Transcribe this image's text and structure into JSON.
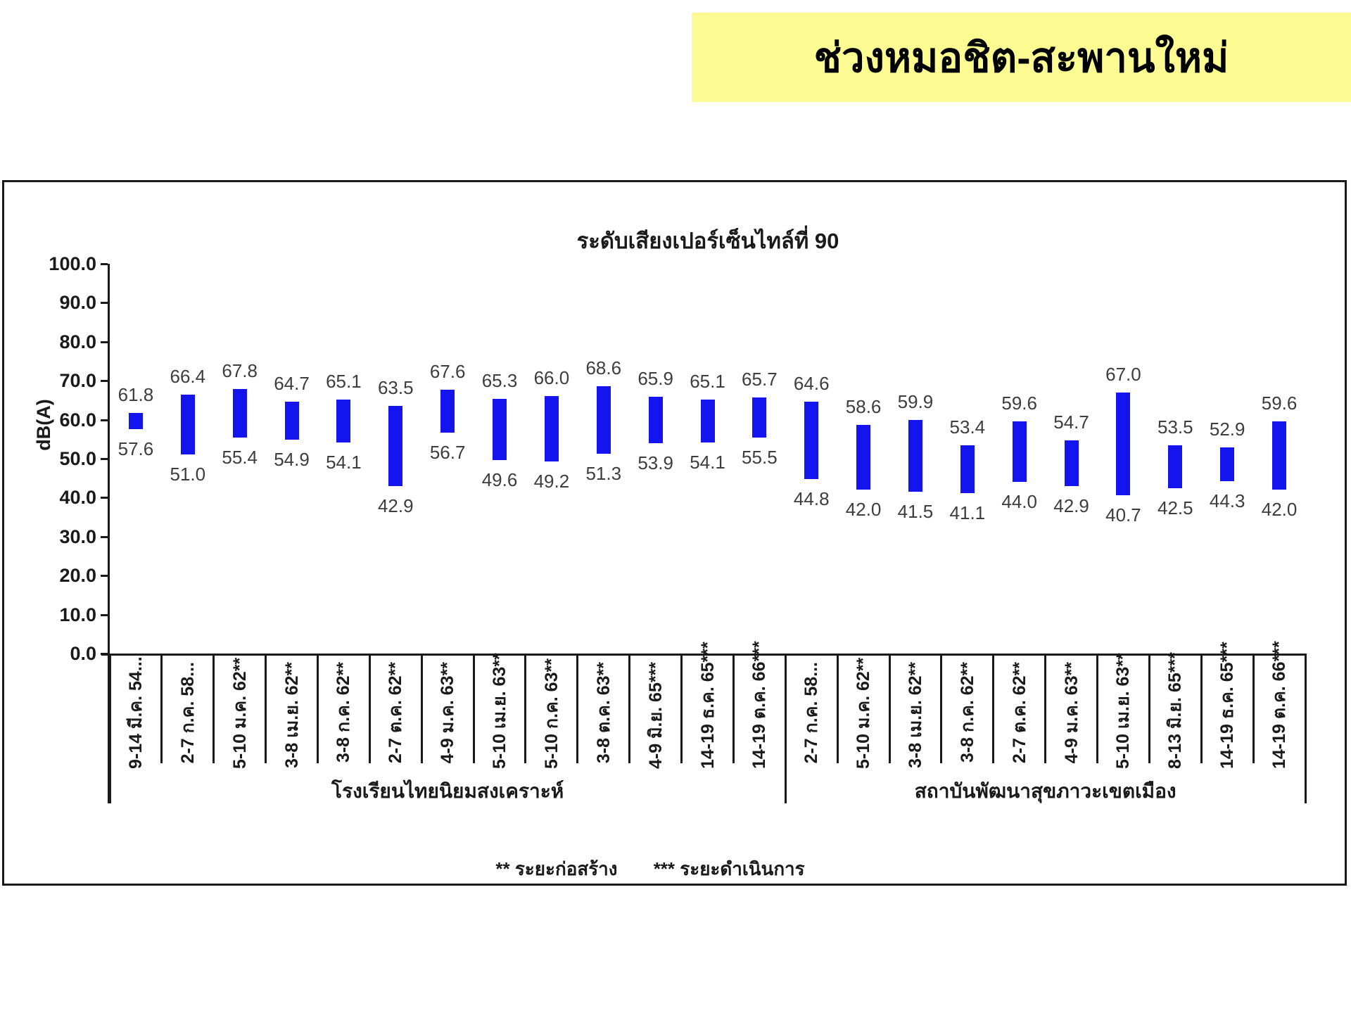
{
  "banner": {
    "title": "ช่วงหมอชิต-สะพานใหม่",
    "background_color": "#FBFB91"
  },
  "chart_data": {
    "type": "bar",
    "subtype": "floating-range-bars",
    "title": "ระดับเสียงเปอร์เซ็นไทล์ที่ 90",
    "ylabel": "dB(A)",
    "ylim": [
      0,
      100
    ],
    "ytick_values": [
      0,
      10,
      20,
      30,
      40,
      50,
      60,
      70,
      80,
      90,
      100
    ],
    "ytick_labels": [
      "0.0",
      "10.0",
      "20.0",
      "30.0",
      "40.0",
      "50.0",
      "60.0",
      "70.0",
      "80.0",
      "90.0",
      "100.0"
    ],
    "grid": false,
    "bar_color": "#1414EE",
    "value_label_color": "#3d3d3d",
    "groups": [
      {
        "label": "โรงเรียนไทยนิยมสงเคราะห์",
        "bars": [
          {
            "category": "9-14 มี.ค. 54...",
            "max": 61.8,
            "min": 57.6
          },
          {
            "category": "2-7 ก.ค. 58...",
            "max": 66.4,
            "min": 51.0
          },
          {
            "category": "5-10 ม.ค. 62**",
            "max": 67.8,
            "min": 55.4
          },
          {
            "category": "3-8 เม.ย. 62**",
            "max": 64.7,
            "min": 54.9
          },
          {
            "category": "3-8 ก.ค. 62**",
            "max": 65.1,
            "min": 54.1
          },
          {
            "category": "2-7 ต.ค. 62**",
            "max": 63.5,
            "min": 42.9
          },
          {
            "category": "4-9 ม.ค. 63**",
            "max": 67.6,
            "min": 56.7
          },
          {
            "category": "5-10 เม.ย. 63**",
            "max": 65.3,
            "min": 49.6
          },
          {
            "category": "5-10 ก.ค. 63**",
            "max": 66.0,
            "min": 49.2
          },
          {
            "category": "3-8 ต.ค. 63**",
            "max": 68.6,
            "min": 51.3
          },
          {
            "category": "4-9 มิ.ย. 65***",
            "max": 65.9,
            "min": 53.9
          },
          {
            "category": "14-19 ธ.ค. 65***",
            "max": 65.1,
            "min": 54.1
          },
          {
            "category": "14-19 ต.ค. 66***",
            "max": 65.7,
            "min": 55.5
          }
        ]
      },
      {
        "label": "สถาบันพัฒนาสุขภาวะเขตเมือง",
        "bars": [
          {
            "category": "2-7 ก.ค. 58...",
            "max": 64.6,
            "min": 44.8
          },
          {
            "category": "5-10 ม.ค. 62**",
            "max": 58.6,
            "min": 42.0
          },
          {
            "category": "3-8 เม.ย. 62**",
            "max": 59.9,
            "min": 41.5
          },
          {
            "category": "3-8 ก.ค. 62**",
            "max": 53.4,
            "min": 41.1
          },
          {
            "category": "2-7 ต.ค. 62**",
            "max": 59.6,
            "min": 44.0
          },
          {
            "category": "4-9 ม.ค. 63**",
            "max": 54.7,
            "min": 42.9
          },
          {
            "category": "5-10 เม.ย. 63**",
            "max": 67.0,
            "min": 40.7
          },
          {
            "category": "8-13 มิ.ย. 65***",
            "max": 53.5,
            "min": 42.5
          },
          {
            "category": "14-19 ธ.ค. 65***",
            "max": 52.9,
            "min": 44.3
          },
          {
            "category": "14-19 ต.ค. 66***",
            "max": 59.6,
            "min": 42.0
          }
        ]
      }
    ],
    "footnote": {
      "construction": "** ระยะก่อสร้าง",
      "operation": "*** ระยะดำเนินการ"
    }
  }
}
